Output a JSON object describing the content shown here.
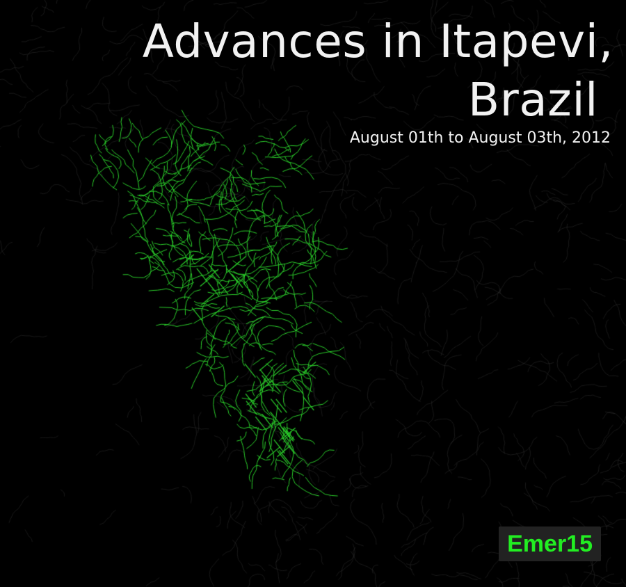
{
  "title": {
    "line1": "Advances in Itapevi,",
    "line2": "Brazil"
  },
  "subtitle": "August 01th to August 03th, 2012",
  "credit": "Emer15",
  "colors": {
    "background": "#000000",
    "existing_roads": "#3a3a3a",
    "new_edits": "#2bd12b",
    "title_text": "#f2f2f2",
    "credit_text": "#22ee22",
    "credit_background": "#222222"
  }
}
